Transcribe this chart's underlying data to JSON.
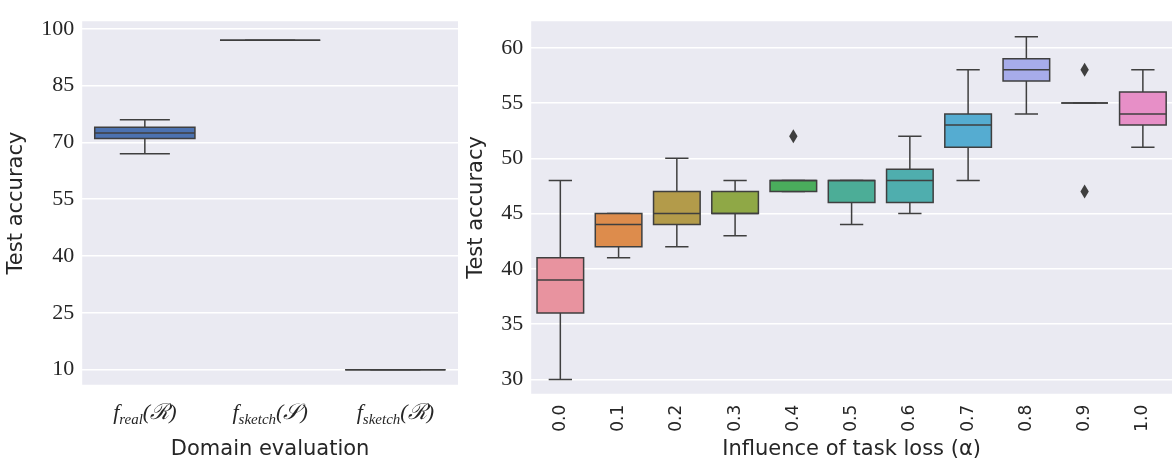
{
  "chart_data": [
    {
      "type": "box",
      "xlabel": "Domain evaluation",
      "ylabel": "Test accuracy",
      "categories": [
        "f$_{real}$(ℛ)",
        "f$_{sketch}$(𝒮)",
        "f$_{sketch}$(ℛ)"
      ],
      "boxes": [
        {
          "low": 67,
          "q1": 71,
          "median": 72.5,
          "q3": 74,
          "high": 76
        },
        {
          "low": 97,
          "q1": 97,
          "median": 97,
          "q3": 97,
          "high": 97
        },
        {
          "low": 10,
          "q1": 10,
          "median": 10,
          "q3": 10,
          "high": 10
        }
      ],
      "colors": [
        "#4c72b0",
        "#3f3f3f",
        "#3f3f3f"
      ],
      "ylim": [
        6,
        102
      ],
      "yticks": [
        10,
        25,
        40,
        55,
        70,
        85,
        100
      ],
      "grid": "y"
    },
    {
      "type": "box",
      "xlabel": "Influence of task loss (α)",
      "ylabel": "Test accuracy",
      "categories": [
        "0.0",
        "0.1",
        "0.2",
        "0.3",
        "0.4",
        "0.5",
        "0.6",
        "0.7",
        "0.8",
        "0.9",
        "1.0"
      ],
      "boxes": [
        {
          "low": 30,
          "q1": 36,
          "median": 39,
          "q3": 41,
          "high": 48
        },
        {
          "low": 41,
          "q1": 42,
          "median": 44,
          "q3": 45,
          "high": 45
        },
        {
          "low": 42,
          "q1": 44,
          "median": 45,
          "q3": 47,
          "high": 50
        },
        {
          "low": 43,
          "q1": 45,
          "median": 45,
          "q3": 47,
          "high": 48
        },
        {
          "low": 47,
          "q1": 47,
          "median": 48,
          "q3": 48,
          "high": 48,
          "outliers": [
            52
          ]
        },
        {
          "low": 44,
          "q1": 46,
          "median": 48,
          "q3": 48,
          "high": 48
        },
        {
          "low": 45,
          "q1": 46,
          "median": 48,
          "q3": 49,
          "high": 52
        },
        {
          "low": 48,
          "q1": 51,
          "median": 53,
          "q3": 54,
          "high": 58
        },
        {
          "low": 54,
          "q1": 57,
          "median": 58,
          "q3": 59,
          "high": 61
        },
        {
          "low": 55,
          "q1": 55,
          "median": 55,
          "q3": 55,
          "high": 55,
          "outliers": [
            58,
            47
          ]
        },
        {
          "low": 51,
          "q1": 53,
          "median": 54,
          "q3": 56,
          "high": 58
        }
      ],
      "colors": [
        "#e8939f",
        "#dd8c4c",
        "#b39b4a",
        "#8fa846",
        "#4aad5c",
        "#4cad97",
        "#4faeae",
        "#55acd1",
        "#a7acea",
        "#3f3f3f",
        "#e78fc7"
      ],
      "marker": "diamond",
      "ylim": [
        28.7,
        62.4
      ],
      "yticks": [
        30,
        35,
        40,
        45,
        50,
        55,
        60
      ],
      "grid": "y"
    }
  ]
}
